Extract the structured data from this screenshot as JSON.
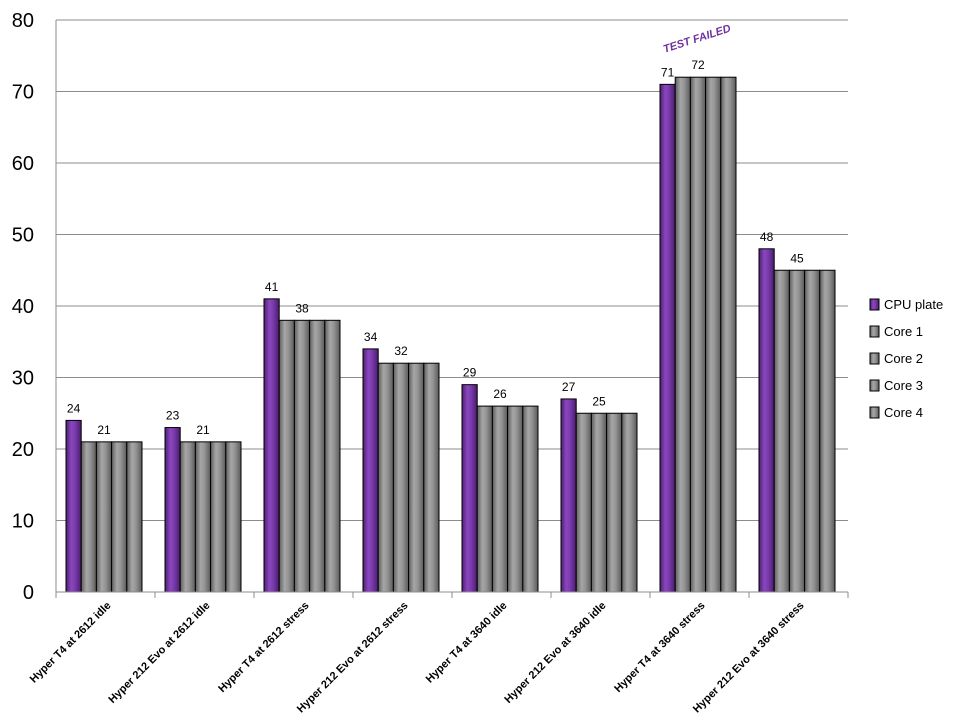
{
  "chart_data": {
    "type": "bar",
    "categories": [
      "Hyper T4 at 2612 idle",
      "Hyper 212 Evo at 2612 idle",
      "Hyper T4 at 2612 stress",
      "Hyper 212 Evo at 2612 stress",
      "Hyper T4 at 3640 idle",
      "Hyper 212 Evo at 3640 idle",
      "Hyper T4 at 3640 stress",
      "Hyper 212 Evo at 3640 stress"
    ],
    "series": [
      {
        "name": "CPU plate",
        "color": "#7030a0",
        "values": [
          24,
          23,
          41,
          34,
          29,
          27,
          71,
          48
        ]
      },
      {
        "name": "Core 1",
        "color": "#8c8c8c",
        "values": [
          21,
          21,
          38,
          32,
          26,
          25,
          72,
          45
        ]
      },
      {
        "name": "Core 2",
        "color": "#8c8c8c",
        "values": [
          21,
          21,
          38,
          32,
          26,
          25,
          72,
          45
        ]
      },
      {
        "name": "Core 3",
        "color": "#8c8c8c",
        "values": [
          21,
          21,
          38,
          32,
          26,
          25,
          72,
          45
        ]
      },
      {
        "name": "Core 4",
        "color": "#8c8c8c",
        "values": [
          21,
          21,
          38,
          32,
          26,
          25,
          72,
          45
        ]
      }
    ],
    "data_labels": [
      {
        "category_index": 0,
        "series_index": 0,
        "text": "24"
      },
      {
        "category_index": 0,
        "series_index": 2,
        "text": "21"
      },
      {
        "category_index": 1,
        "series_index": 0,
        "text": "23"
      },
      {
        "category_index": 1,
        "series_index": 2,
        "text": "21"
      },
      {
        "category_index": 2,
        "series_index": 0,
        "text": "41"
      },
      {
        "category_index": 2,
        "series_index": 2,
        "text": "38"
      },
      {
        "category_index": 3,
        "series_index": 0,
        "text": "34"
      },
      {
        "category_index": 3,
        "series_index": 2,
        "text": "32"
      },
      {
        "category_index": 4,
        "series_index": 0,
        "text": "29"
      },
      {
        "category_index": 4,
        "series_index": 2,
        "text": "26"
      },
      {
        "category_index": 5,
        "series_index": 0,
        "text": "27"
      },
      {
        "category_index": 5,
        "series_index": 2,
        "text": "25"
      },
      {
        "category_index": 6,
        "series_index": 0,
        "text": "71"
      },
      {
        "category_index": 6,
        "series_index": 2,
        "text": "72"
      },
      {
        "category_index": 7,
        "series_index": 0,
        "text": "48"
      },
      {
        "category_index": 7,
        "series_index": 2,
        "text": "45"
      }
    ],
    "annotations": [
      {
        "text": "TEST FAILED",
        "category_index": 6,
        "color": "#7030a0"
      }
    ],
    "title": "",
    "xlabel": "",
    "ylabel": "",
    "ylim": [
      0,
      80
    ],
    "yticks": [
      0,
      10,
      20,
      30,
      40,
      50,
      60,
      70,
      80
    ],
    "grid": true,
    "legend": "right"
  }
}
